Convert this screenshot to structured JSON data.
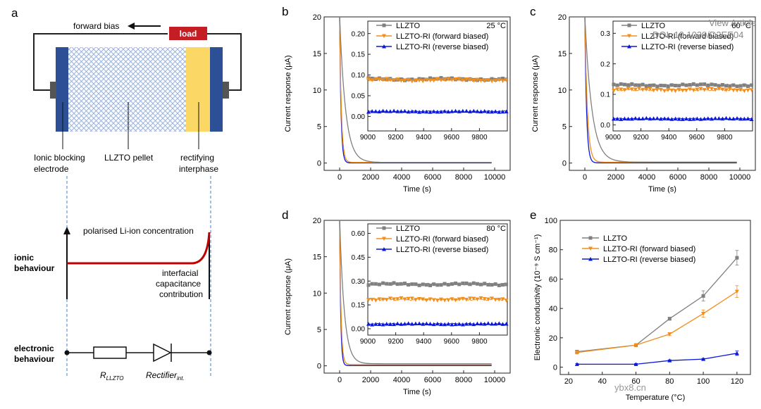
{
  "overlay": {
    "link": "View Article",
    "doi": "DOI: 10.1039/D2EE04"
  },
  "watermark": "ybx8.cn",
  "panel_a": {
    "label": "a",
    "forward_bias": "forward bias",
    "load": "load",
    "ionic_blocking": [
      "Ionic blocking",
      "electrode"
    ],
    "pellet": "LLZTO pellet",
    "rectifying": [
      "rectifying",
      "interphase"
    ],
    "polarised": "polarised Li-ion concentration",
    "ionic_behaviour": [
      "ionic",
      "behaviour"
    ],
    "interfacial": [
      "interfacial",
      "capacitance",
      "contribution"
    ],
    "electronic_behaviour": [
      "electronic",
      "behaviour"
    ],
    "r_main": "R",
    "r_sub": "LLZTO",
    "rect_main": "Rectifier",
    "rect_sub": "int.",
    "colors": {
      "electrode": "#2c4f95",
      "pellet": "#9bb5df",
      "interphase": "#fbd766",
      "load": "#c41e24",
      "red_line": "#c00000",
      "dash": "#4a7fc9"
    }
  },
  "chart_data": [
    {
      "id": "b",
      "type": "line",
      "label": "b",
      "ylabel": "Current response (μA)",
      "xlabel": "Time (s)",
      "xlim": [
        -1000,
        11000
      ],
      "ylim": [
        -1,
        20
      ],
      "xticks": [
        0,
        2000,
        4000,
        6000,
        8000,
        10000
      ],
      "yticks": [
        0,
        5,
        10,
        15,
        20
      ],
      "series_tau": [
        380,
        110,
        90
      ],
      "inset": {
        "temp": "25 °C",
        "xlim": [
          9000,
          10000
        ],
        "ylim": [
          -0.035,
          0.23
        ],
        "xticks": [
          9000,
          9200,
          9400,
          9600,
          9800
        ],
        "yticks": [
          0.0,
          0.05,
          0.1,
          0.15,
          0.2
        ],
        "levels": [
          0.09,
          0.088,
          0.012
        ],
        "series": [
          "LLZTO",
          "LLZTO-RI (forward biased)",
          "LLZTO-RI (reverse biased)"
        ]
      }
    },
    {
      "id": "c",
      "type": "line",
      "label": "c",
      "ylabel": "Current response (μA)",
      "xlabel": "Time (s)",
      "xlim": [
        -1000,
        11000
      ],
      "ylim": [
        -1,
        20
      ],
      "xticks": [
        0,
        2000,
        4000,
        6000,
        8000,
        10000
      ],
      "yticks": [
        0,
        5,
        10,
        15,
        20
      ],
      "series_tau": [
        450,
        160,
        110
      ],
      "inset": {
        "temp": "60 °C",
        "xlim": [
          9000,
          10000
        ],
        "ylim": [
          -0.02,
          0.34
        ],
        "xticks": [
          9000,
          9200,
          9400,
          9600,
          9800
        ],
        "yticks": [
          0.0,
          0.1,
          0.2,
          0.3
        ],
        "levels": [
          0.13,
          0.115,
          0.02
        ],
        "series": [
          "LLZTO",
          "LLZTO-RI (forward biased)",
          "LLZTO-RI (reverse biased)"
        ]
      }
    },
    {
      "id": "d",
      "type": "line",
      "label": "d",
      "ylabel": "Current response (μA)",
      "xlabel": "Time (s)",
      "xlim": [
        -1000,
        11000
      ],
      "ylim": [
        -1,
        20
      ],
      "xticks": [
        0,
        2000,
        4000,
        6000,
        8000,
        10000
      ],
      "yticks": [
        0,
        5,
        10,
        15,
        20
      ],
      "series_tau": [
        300,
        90,
        70
      ],
      "inset": {
        "temp": "80 °C",
        "xlim": [
          9000,
          10000
        ],
        "ylim": [
          -0.04,
          0.66
        ],
        "xticks": [
          9000,
          9200,
          9400,
          9600,
          9800
        ],
        "yticks": [
          0.0,
          0.15,
          0.3,
          0.45,
          0.6
        ],
        "levels": [
          0.28,
          0.185,
          0.03
        ],
        "series": [
          "LLZTO",
          "LLZTO-RI (forward biased)",
          "LLZTO-RI (reverse biased)"
        ]
      }
    },
    {
      "id": "e",
      "type": "line",
      "label": "e",
      "ylabel": "Electronic conductivity (10⁻⁹ S cm⁻¹)",
      "xlabel": "Temperature (°C)",
      "xlim": [
        15,
        128
      ],
      "ylim": [
        -5,
        100
      ],
      "xticks": [
        20,
        40,
        60,
        80,
        100,
        120
      ],
      "yticks": [
        0,
        20,
        40,
        60,
        80,
        100
      ],
      "x": [
        25,
        60,
        80,
        100,
        120
      ],
      "series": [
        {
          "name": "LLZTO",
          "values": [
            10.5,
            15,
            33,
            48.5,
            74.5
          ],
          "err": [
            1,
            1,
            1,
            3.5,
            5
          ]
        },
        {
          "name": "LLZTO-RI (forward biased)",
          "values": [
            10,
            15,
            22.5,
            36.5,
            51.5
          ],
          "err": [
            1,
            1,
            1,
            2.5,
            4
          ]
        },
        {
          "name": "LLZTO-RI (reverse biased)",
          "values": [
            2,
            2,
            4.5,
            5.5,
            9.5
          ],
          "err": [
            0.5,
            0.5,
            0.5,
            0.5,
            1.5
          ]
        }
      ]
    }
  ],
  "series_colors": [
    "#808080",
    "#f28e1c",
    "#0a18d6"
  ]
}
